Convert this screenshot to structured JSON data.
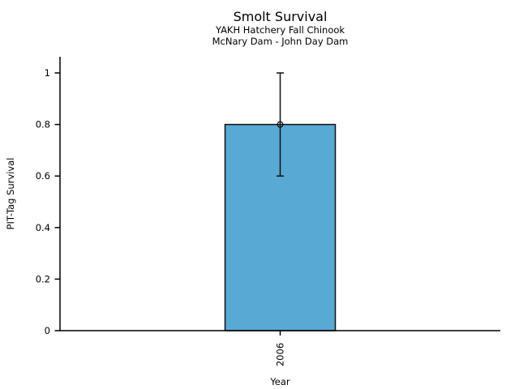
{
  "figure": {
    "title": "Smolt Survival",
    "subtitle_line1": "YAKH Hatchery Fall Chinook",
    "subtitle_line2": "McNary Dam - John Day Dam"
  },
  "chart_data": {
    "type": "bar",
    "title": "Smolt Survival",
    "subtitle": [
      "YAKH Hatchery Fall Chinook",
      "McNary Dam - John Day Dam"
    ],
    "categories": [
      "2006"
    ],
    "values": [
      0.8
    ],
    "error_bars": [
      {
        "low": 0.6,
        "high": 1.0
      }
    ],
    "marker": "open-circle",
    "xlabel": "Year",
    "ylabel": "PIT-Tag Survival",
    "ylim": [
      0,
      1.06
    ],
    "yticks": [
      0,
      0.2,
      0.4,
      0.6,
      0.8,
      1
    ],
    "ytick_labels": [
      "0",
      "0.2",
      "0.4",
      "0.6",
      "0.8",
      "1"
    ],
    "xtick_labels": [
      "2006"
    ],
    "xtick_rotation": 90,
    "grid": false,
    "legend": false,
    "bar_color": "#58a9d4",
    "bar_edge_color": "#111111",
    "errorbar_color": "#111111",
    "axis_color": "#000000",
    "text_color": "#000000",
    "background": "#ffffff"
  }
}
